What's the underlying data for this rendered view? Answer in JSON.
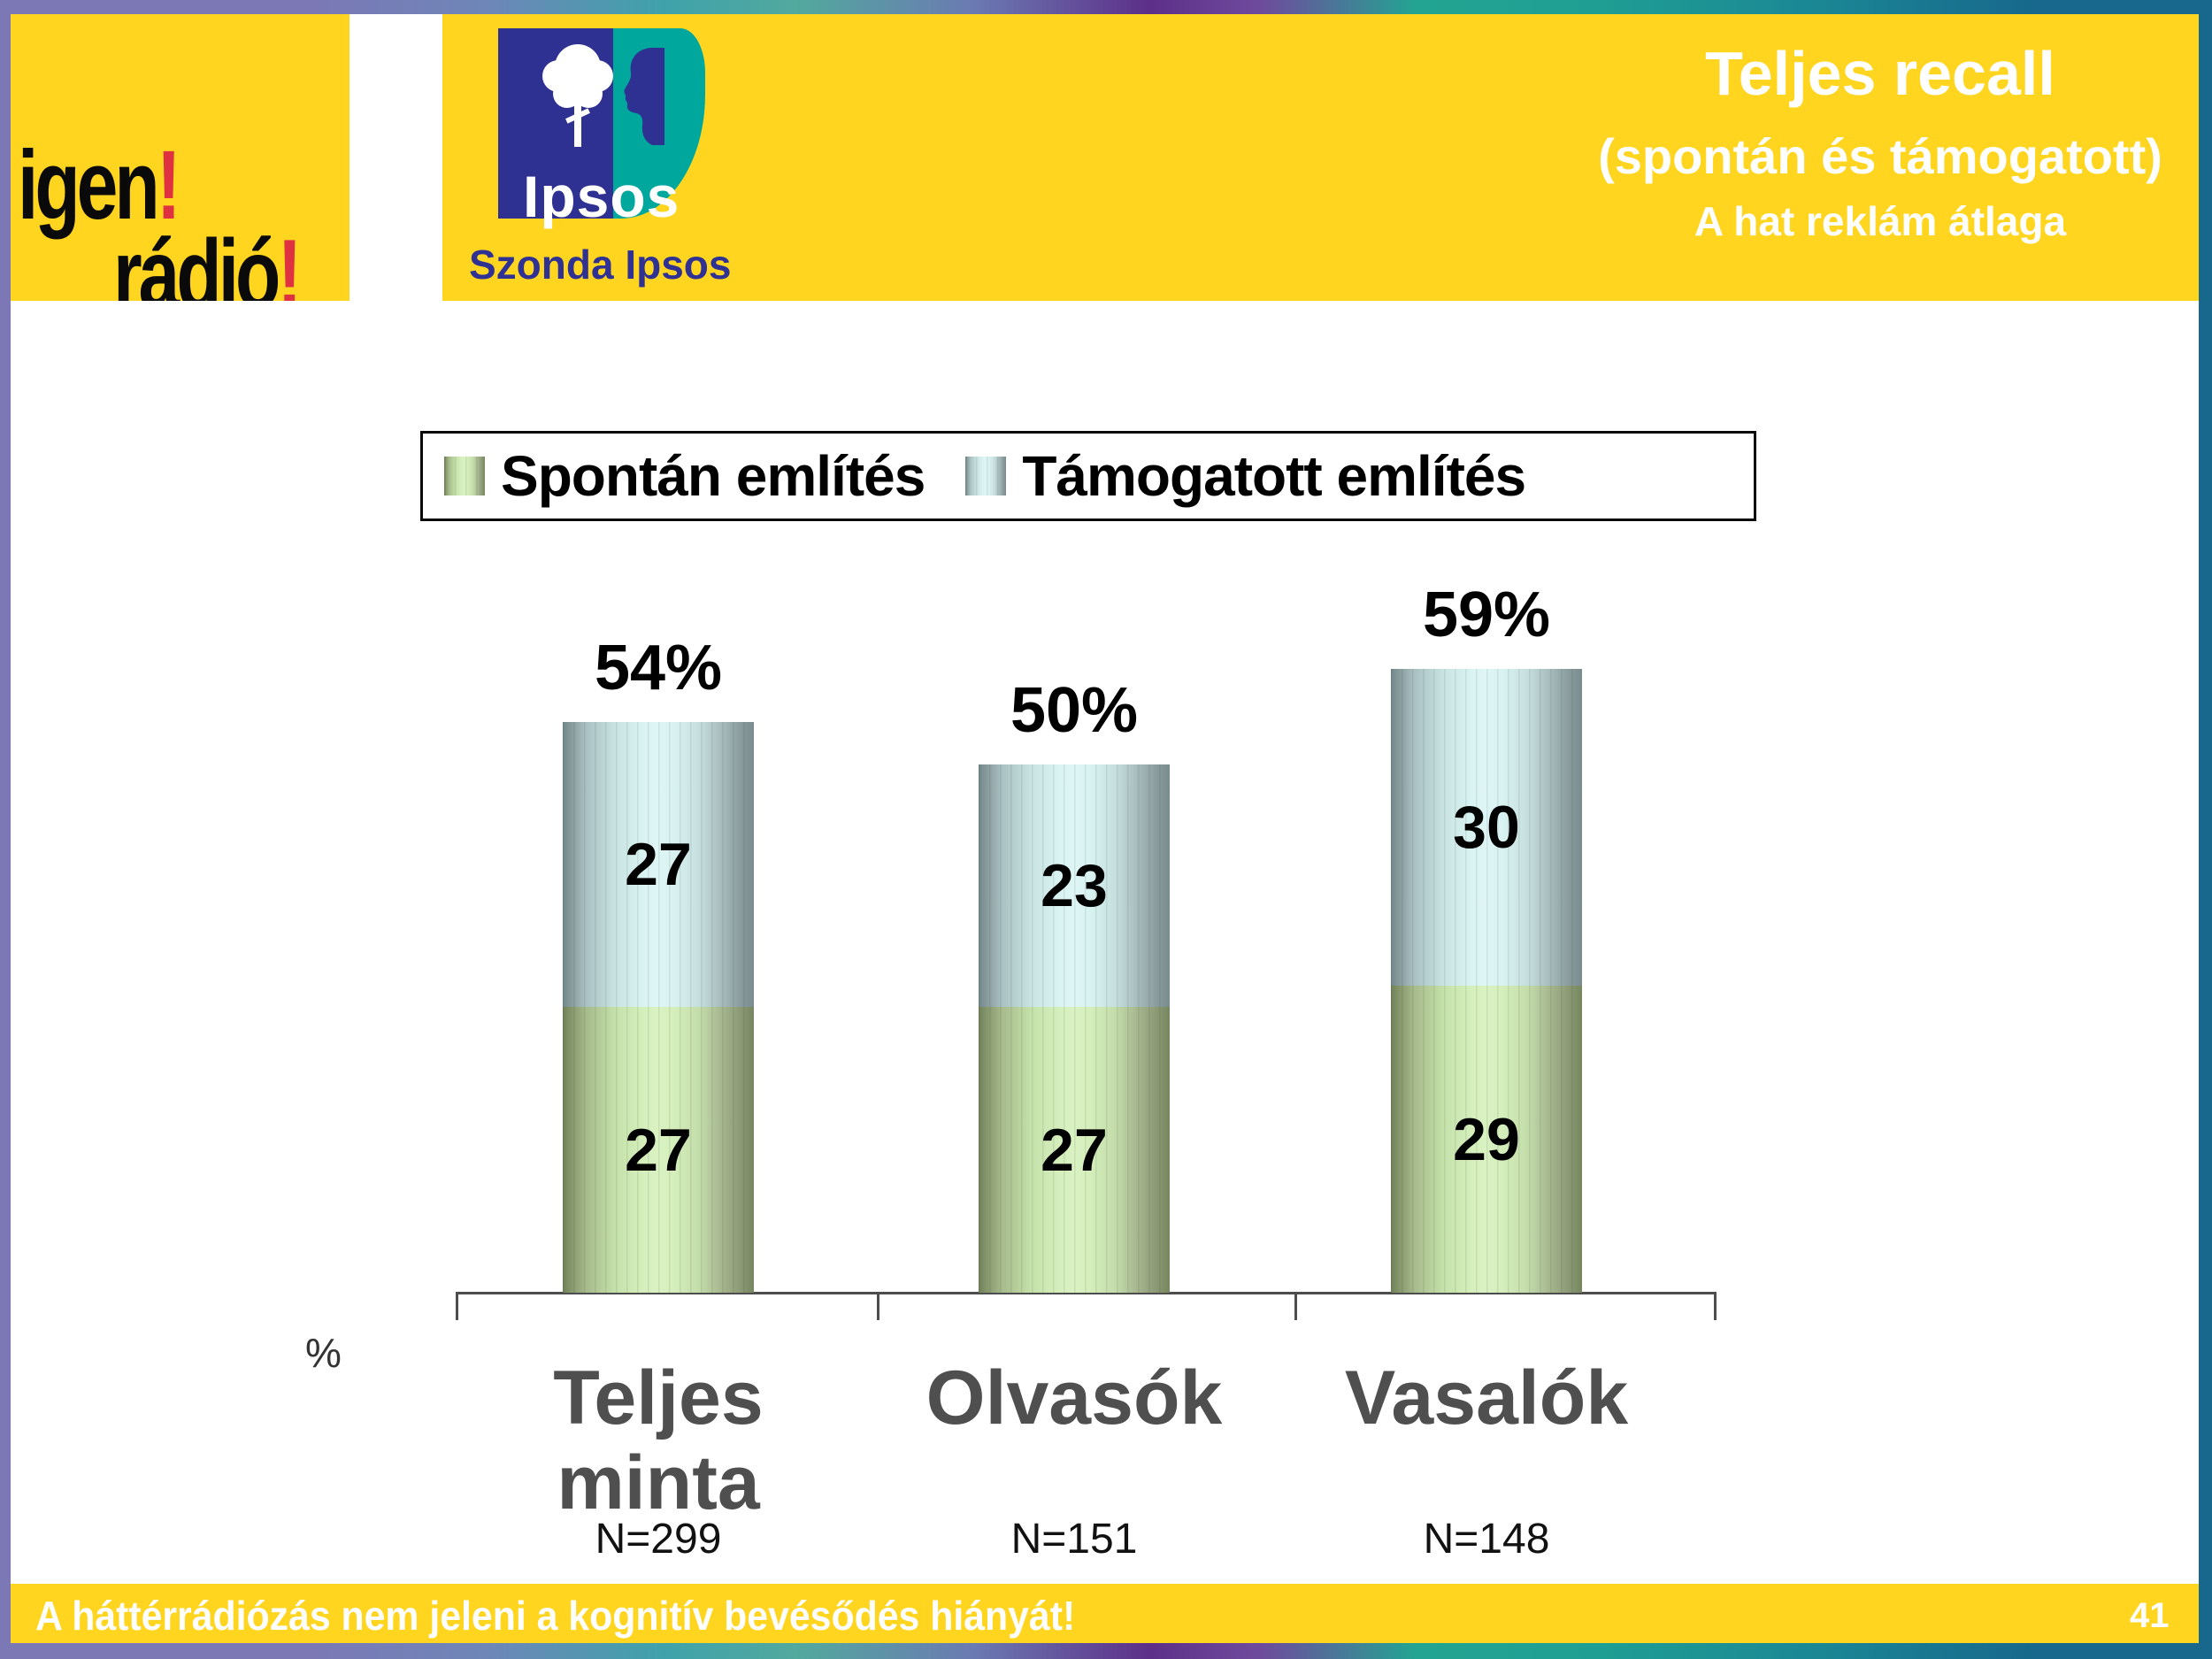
{
  "logos": {
    "igen_radio": {
      "word1": "igen",
      "bang1": "!",
      "word2": "rádió",
      "bang2": "!"
    },
    "ipsos": {
      "wordmark": "Ipsos",
      "subtitle": "Szonda Ipsos"
    }
  },
  "header": {
    "title": "Teljes recall",
    "subtitle": "(spontán és támogatott)",
    "subsubtitle": "A hat reklám átlaga"
  },
  "chart_data": {
    "type": "bar",
    "stacked": true,
    "grid": false,
    "legend_position": "top",
    "ylabel": "%",
    "ylim": [
      0,
      62
    ],
    "categories": [
      "Teljes minta",
      "Olvasók",
      "Vasalók"
    ],
    "sample_sizes": [
      "N=299",
      "N=151",
      "N=148"
    ],
    "series": [
      {
        "name": "Spontán említés",
        "color": "#c6e2ab",
        "values": [
          27,
          27,
          29
        ]
      },
      {
        "name": "Támogatott említés",
        "color": "#c9e4e3",
        "values": [
          27,
          23,
          30
        ]
      }
    ],
    "totals": [
      "54%",
      "50%",
      "59%"
    ]
  },
  "footer": {
    "text": "A háttérrádiózás nem jeleni a kognitív bevésődés hiányát!",
    "page_number": "41"
  },
  "colors": {
    "slide_yellow": "#ffd520",
    "border_purple": "#7b78b5",
    "border_teal": "#17688c",
    "ipsos_blue": "#2e3192",
    "ipsos_teal": "#00a79d",
    "logo_red": "#e03140",
    "category_label_gray": "#4f4f4f"
  }
}
